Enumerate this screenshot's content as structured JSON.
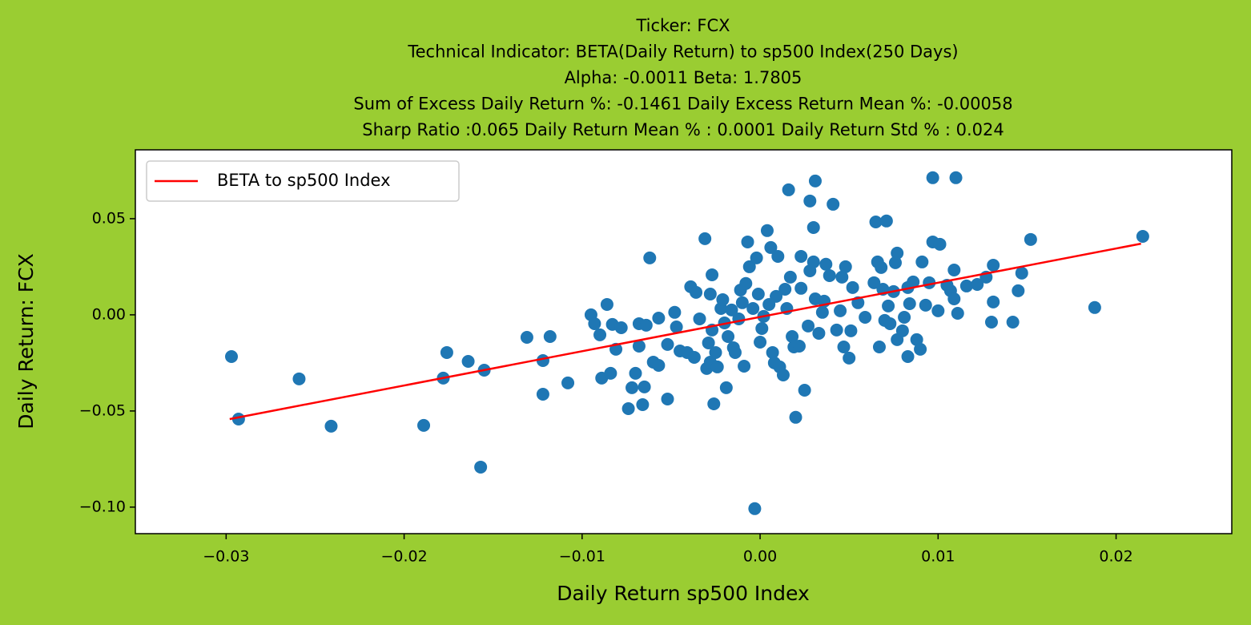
{
  "chart_data": {
    "type": "scatter",
    "title": [
      "Ticker: FCX",
      "Technical Indicator: BETA(Daily Return) to sp500 Index(250 Days)",
      "Alpha: -0.0011   Beta: 1.7805",
      "  Sum of Excess Daily Return %: -0.1461   Daily Excess Return Mean %: -0.00058",
      "Sharp Ratio :0.065     Daily Return Mean % : 0.0001     Daily Return Std % : 0.024"
    ],
    "xlabel": "Daily Return sp500 Index",
    "ylabel": "Daily Return: FCX",
    "xlim": [
      -0.0351,
      0.0265
    ],
    "ylim": [
      -0.1138,
      0.0858
    ],
    "xticks": [
      {
        "value": -0.03,
        "label": "−0.03"
      },
      {
        "value": -0.02,
        "label": "−0.02"
      },
      {
        "value": -0.01,
        "label": "−0.01"
      },
      {
        "value": 0,
        "label": "0.00"
      },
      0.01,
      0.02
    ],
    "yticks": [
      {
        "value": -0.1,
        "label": "−0.10"
      },
      {
        "value": -0.05,
        "label": "−0.05"
      },
      {
        "value": 0,
        "label": "0.00"
      },
      0.05
    ],
    "legend": "upper left",
    "points": {
      "color": "#1f77b4",
      "x": [
        -0.0297,
        -0.0259,
        -0.0293,
        -0.0241,
        -0.0189,
        -0.0176,
        -0.0178,
        -0.0164,
        -0.0155,
        -0.0157,
        -0.0131,
        -0.0118,
        -0.0122,
        -0.0122,
        -0.0108,
        -0.0095,
        -0.0093,
        -0.009,
        -0.0086,
        -0.0083,
        -0.0081,
        -0.0078,
        -0.0089,
        -0.0084,
        -0.0074,
        -0.0072,
        -0.007,
        -0.0068,
        -0.0068,
        -0.0065,
        -0.0066,
        -0.0064,
        -0.0062,
        -0.006,
        -0.0057,
        -0.0057,
        -0.0052,
        -0.0052,
        -0.0048,
        -0.0047,
        -0.0045,
        -0.0041,
        -0.0039,
        -0.0037,
        -0.0036,
        -0.0034,
        -0.0031,
        -0.003,
        -0.0029,
        -0.0028,
        -0.0027,
        -0.0028,
        -0.0027,
        -0.0026,
        -0.0025,
        -0.0024,
        -0.0022,
        -0.0021,
        -0.002,
        -0.0019,
        -0.0018,
        -0.0016,
        -0.0015,
        -0.0014,
        -0.0012,
        -0.0011,
        -0.001,
        -0.0009,
        -0.0008,
        -0.0007,
        -0.0006,
        -0.0004,
        -0.0003,
        -0.0002,
        -0.0001,
        0,
        0.0001,
        0.0002,
        0.0004,
        0.0005,
        0.0006,
        0.0007,
        0.0008,
        0.0009,
        0.001,
        0.0011,
        0.0013,
        0.0014,
        0.0015,
        0.0016,
        0.0017,
        0.0018,
        0.0019,
        0.002,
        0.0022,
        0.0023,
        0.0023,
        0.0025,
        0.0027,
        0.0028,
        0.0028,
        0.003,
        0.003,
        0.0031,
        0.0031,
        0.0033,
        0.0035,
        0.0036,
        0.0037,
        0.0039,
        0.0041,
        0.0043,
        0.0045,
        0.0046,
        0.0047,
        0.0048,
        0.005,
        0.0051,
        0.0052,
        0.0055,
        0.0059,
        0.0064,
        0.0065,
        0.0066,
        0.0067,
        0.0068,
        0.0069,
        0.007,
        0.0071,
        0.0072,
        0.0073,
        0.0075,
        0.0076,
        0.0077,
        0.0077,
        0.008,
        0.0081,
        0.0083,
        0.0083,
        0.0084,
        0.0086,
        0.0088,
        0.009,
        0.0091,
        0.0093,
        0.0095,
        0.0097,
        0.0097,
        0.01,
        0.0101,
        0.0105,
        0.0107,
        0.0109,
        0.0109,
        0.011,
        0.0111,
        0.0116,
        0.0122,
        0.0127,
        0.013,
        0.0131,
        0.0131,
        0.0142,
        0.0145,
        0.0147,
        0.0152,
        0.0188,
        0.0215
      ],
      "y": [
        -0.0217,
        -0.0333,
        -0.0542,
        -0.0579,
        -0.0575,
        -0.0196,
        -0.0329,
        -0.0242,
        -0.0288,
        -0.0792,
        -0.0117,
        -0.0113,
        -0.0238,
        -0.0413,
        -0.0354,
        0,
        -0.0046,
        -0.0104,
        0.0054,
        -0.005,
        -0.0179,
        -0.0067,
        -0.0329,
        -0.0304,
        -0.0488,
        -0.0379,
        -0.0304,
        -0.0046,
        -0.0163,
        -0.0375,
        -0.0467,
        -0.0054,
        0.0296,
        -0.0246,
        -0.0263,
        -0.0017,
        -0.0438,
        -0.0154,
        0.0013,
        -0.0063,
        -0.0188,
        -0.0196,
        0.0146,
        -0.0221,
        0.0117,
        -0.0021,
        0.0396,
        -0.0279,
        -0.0146,
        -0.0246,
        0.0208,
        0.0108,
        -0.0079,
        -0.0463,
        -0.0196,
        -0.0271,
        0.0033,
        0.0079,
        -0.0042,
        -0.0379,
        -0.0113,
        0.0025,
        -0.0171,
        -0.0196,
        -0.0021,
        0.0129,
        0.0063,
        -0.0267,
        0.0163,
        0.0379,
        0.025,
        0.0033,
        -0.1008,
        0.0296,
        0.0108,
        -0.0142,
        -0.0071,
        -0.0008,
        0.0438,
        0.0054,
        0.035,
        -0.0196,
        -0.025,
        0.0096,
        0.0304,
        -0.0271,
        -0.0313,
        0.0133,
        0.0033,
        0.065,
        0.0196,
        -0.0113,
        -0.0167,
        -0.0533,
        -0.0163,
        0.0304,
        0.0138,
        -0.0392,
        -0.0058,
        0.0592,
        0.0229,
        0.0454,
        0.0275,
        0.0696,
        0.0083,
        -0.0096,
        0.0013,
        0.0071,
        0.0263,
        0.0204,
        0.0575,
        -0.0079,
        0.0021,
        0.0196,
        -0.0167,
        0.025,
        -0.0225,
        -0.0083,
        0.0142,
        0.0063,
        -0.0013,
        0.0167,
        0.0483,
        0.0275,
        -0.0167,
        0.0246,
        0.0133,
        -0.0029,
        0.0488,
        0.0046,
        -0.0046,
        0.0121,
        0.0271,
        0.0321,
        -0.0129,
        -0.0083,
        -0.0013,
        0.0142,
        -0.0217,
        0.0058,
        0.0171,
        -0.0129,
        -0.0179,
        0.0275,
        0.005,
        0.0167,
        0.0379,
        0.0713,
        0.0021,
        0.0367,
        0.0154,
        0.0125,
        0.0233,
        0.0083,
        0.0713,
        0.0008,
        0.015,
        0.0158,
        0.0196,
        -0.0038,
        0.0258,
        0.0067,
        -0.0038,
        0.0125,
        0.0217,
        0.0392,
        0.0038,
        0.0408
      ]
    },
    "line": {
      "name": "BETA to sp500 Index",
      "color": "#ff0000",
      "x": [
        -0.0298,
        0.0214
      ],
      "y": [
        -0.0542,
        0.037
      ]
    }
  }
}
